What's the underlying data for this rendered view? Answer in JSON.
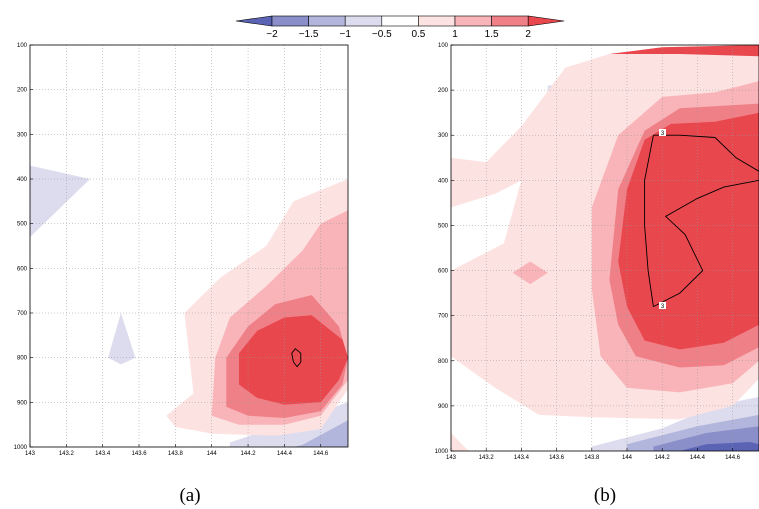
{
  "colorbar": {
    "levels": [
      "-2",
      "-1.5",
      "-1",
      "-0.5",
      "0.5",
      "1",
      "1.5",
      "2"
    ],
    "colors": [
      "#5b64b4",
      "#8a8fc9",
      "#b3b6dc",
      "#dcdcee",
      "#ffffff",
      "#fde2e2",
      "#f8b4b8",
      "#f08088",
      "#e8474d"
    ]
  },
  "chart_data": [
    {
      "type": "contour",
      "caption": "(a)",
      "x_ticks": [
        "143",
        "143.2",
        "143.4",
        "143.6",
        "143.8",
        "144",
        "144.2",
        "144.4",
        "144.6"
      ],
      "y_ticks": [
        "100",
        "200",
        "300",
        "400",
        "500",
        "600",
        "700",
        "800",
        "900",
        "1000"
      ],
      "xlim": [
        143,
        144.75
      ],
      "ylim": [
        1000,
        100
      ],
      "grid": true,
      "contour_labels": [],
      "regions": [
        {
          "level": -0.5,
          "points": [
            [
              143,
              370
            ],
            [
              143.33,
              400
            ],
            [
              143,
              530
            ]
          ]
        },
        {
          "level": -0.5,
          "points": [
            [
              143.5,
              700
            ],
            [
              143.58,
              800
            ],
            [
              143.5,
              815
            ],
            [
              143.43,
              800
            ]
          ]
        },
        {
          "level": -0.5,
          "points": [
            [
              144.1,
              990
            ],
            [
              144.75,
              900
            ],
            [
              144.75,
              1000
            ],
            [
              144.1,
              1000
            ]
          ]
        },
        {
          "level": -1,
          "points": [
            [
              144.5,
              995
            ],
            [
              144.75,
              940
            ],
            [
              144.75,
              1000
            ],
            [
              144.45,
              1000
            ]
          ]
        },
        {
          "level": 0.5,
          "points": [
            [
              143.75,
              930
            ],
            [
              143.9,
              880
            ],
            [
              143.85,
              700
            ],
            [
              144.05,
              620
            ],
            [
              144.3,
              550
            ],
            [
              144.45,
              450
            ],
            [
              144.75,
              400
            ],
            [
              144.75,
              870
            ],
            [
              144.6,
              960
            ],
            [
              144.35,
              975
            ],
            [
              144.0,
              970
            ],
            [
              143.8,
              955
            ]
          ]
        },
        {
          "level": 1.0,
          "points": [
            [
              144.0,
              930
            ],
            [
              144.02,
              800
            ],
            [
              144.1,
              710
            ],
            [
              144.3,
              640
            ],
            [
              144.5,
              560
            ],
            [
              144.6,
              500
            ],
            [
              144.75,
              470
            ],
            [
              144.75,
              850
            ],
            [
              144.6,
              930
            ],
            [
              144.4,
              950
            ],
            [
              144.15,
              950
            ]
          ]
        },
        {
          "level": 1.5,
          "points": [
            [
              144.08,
              910
            ],
            [
              144.08,
              800
            ],
            [
              144.2,
              730
            ],
            [
              144.35,
              680
            ],
            [
              144.55,
              660
            ],
            [
              144.7,
              730
            ],
            [
              144.75,
              800
            ],
            [
              144.72,
              860
            ],
            [
              144.6,
              920
            ],
            [
              144.4,
              935
            ],
            [
              144.2,
              930
            ]
          ]
        },
        {
          "level": 2,
          "points": [
            [
              144.15,
              860
            ],
            [
              144.15,
              790
            ],
            [
              144.25,
              740
            ],
            [
              144.4,
              710
            ],
            [
              144.55,
              705
            ],
            [
              144.72,
              760
            ],
            [
              144.75,
              800
            ],
            [
              144.7,
              850
            ],
            [
              144.6,
              900
            ],
            [
              144.4,
              905
            ],
            [
              144.25,
              890
            ]
          ]
        }
      ],
      "contours": [
        {
          "level": 3,
          "points": [
            [
              144.45,
              810
            ],
            [
              144.44,
              790
            ],
            [
              144.46,
              780
            ],
            [
              144.49,
              790
            ],
            [
              144.49,
              810
            ],
            [
              144.47,
              820
            ]
          ]
        }
      ]
    },
    {
      "type": "contour",
      "caption": "(b)",
      "x_ticks": [
        "143",
        "143.2",
        "143.4",
        "143.6",
        "143.8",
        "144",
        "144.2",
        "144.4",
        "144.6"
      ],
      "y_ticks": [
        "100",
        "200",
        "300",
        "400",
        "500",
        "600",
        "700",
        "800",
        "900",
        "1000"
      ],
      "xlim": [
        143,
        144.75
      ],
      "ylim": [
        1000,
        100
      ],
      "grid": true,
      "contour_labels": [
        "3",
        "3"
      ],
      "regions": [
        {
          "level": -0.5,
          "points": [
            [
              143.55,
              190
            ],
            [
              143.85,
              180
            ],
            [
              144.0,
              200
            ],
            [
              143.75,
              225
            ],
            [
              143.55,
              215
            ]
          ]
        },
        {
          "level": -0.5,
          "points": [
            [
              144.35,
              195
            ],
            [
              144.5,
              200
            ],
            [
              144.35,
              210
            ]
          ]
        },
        {
          "level": -0.5,
          "points": [
            [
              143.8,
              990
            ],
            [
              144.2,
              950
            ],
            [
              144.5,
              900
            ],
            [
              144.75,
              880
            ],
            [
              144.75,
              1000
            ],
            [
              143.8,
              1000
            ]
          ]
        },
        {
          "level": -1,
          "points": [
            [
              144.0,
              985
            ],
            [
              144.4,
              945
            ],
            [
              144.75,
              920
            ],
            [
              144.75,
              1000
            ],
            [
              144.0,
              1000
            ]
          ]
        },
        {
          "level": -1.5,
          "points": [
            [
              144.15,
              990
            ],
            [
              144.45,
              960
            ],
            [
              144.75,
              945
            ],
            [
              144.75,
              1000
            ],
            [
              144.15,
              1000
            ]
          ]
        },
        {
          "level": -2,
          "points": [
            [
              144.3,
              1000
            ],
            [
              144.45,
              985
            ],
            [
              144.7,
              980
            ],
            [
              144.75,
              985
            ],
            [
              144.75,
              1000
            ]
          ]
        },
        {
          "level": 0.5,
          "points": [
            [
              143,
              350
            ],
            [
              143.2,
              360
            ],
            [
              143.4,
              280
            ],
            [
              143.65,
              150
            ],
            [
              143.9,
              120
            ],
            [
              144.2,
              105
            ],
            [
              144.75,
              100
            ],
            [
              144.75,
              840
            ],
            [
              144.6,
              900
            ],
            [
              144.3,
              930
            ],
            [
              143.8,
              925
            ],
            [
              143.5,
              920
            ],
            [
              143.25,
              860
            ],
            [
              143,
              790
            ],
            [
              143,
              600
            ],
            [
              143.3,
              540
            ],
            [
              143.4,
              400
            ],
            [
              143.25,
              430
            ],
            [
              143,
              460
            ]
          ]
        },
        {
          "level": 0.5,
          "points": [
            [
              143,
              960
            ],
            [
              143.1,
              1000
            ],
            [
              143,
              1000
            ]
          ]
        },
        {
          "level": 1.0,
          "points": [
            [
              143.35,
              605
            ],
            [
              143.45,
              580
            ],
            [
              143.55,
              605
            ],
            [
              143.45,
              630
            ]
          ]
        },
        {
          "level": 1.0,
          "points": [
            [
              143.8,
              640
            ],
            [
              143.8,
              460
            ],
            [
              143.95,
              300
            ],
            [
              144.2,
              215
            ],
            [
              144.5,
              205
            ],
            [
              144.75,
              180
            ],
            [
              144.75,
              800
            ],
            [
              144.6,
              850
            ],
            [
              144.3,
              870
            ],
            [
              144.0,
              860
            ],
            [
              143.85,
              790
            ]
          ]
        },
        {
          "level": 1.5,
          "points": [
            [
              143.9,
              620
            ],
            [
              143.95,
              420
            ],
            [
              144.1,
              290
            ],
            [
              144.3,
              240
            ],
            [
              144.75,
              230
            ],
            [
              144.75,
              770
            ],
            [
              144.55,
              810
            ],
            [
              144.3,
              815
            ],
            [
              144.05,
              790
            ],
            [
              143.95,
              720
            ]
          ]
        },
        {
          "level": 2,
          "points": [
            [
              143.95,
              580
            ],
            [
              144.0,
              420
            ],
            [
              144.1,
              310
            ],
            [
              144.25,
              275
            ],
            [
              144.5,
              270
            ],
            [
              144.75,
              250
            ],
            [
              144.75,
              720
            ],
            [
              144.55,
              760
            ],
            [
              144.3,
              775
            ],
            [
              144.1,
              755
            ],
            [
              144.0,
              680
            ]
          ]
        },
        {
          "level": 2,
          "points": [
            [
              143.9,
              120
            ],
            [
              144.2,
              105
            ],
            [
              144.75,
              100
            ],
            [
              144.75,
              125
            ],
            [
              144.3,
              120
            ]
          ]
        }
      ],
      "contours": [
        {
          "level": 3,
          "points": [
            [
              144.15,
              300
            ],
            [
              144.3,
              300
            ],
            [
              144.5,
              305
            ],
            [
              144.62,
              350
            ],
            [
              144.75,
              380
            ]
          ]
        },
        {
          "level": 3,
          "points": [
            [
              144.15,
              300
            ],
            [
              144.1,
              400
            ],
            [
              144.1,
              500
            ],
            [
              144.12,
              600
            ],
            [
              144.15,
              680
            ]
          ]
        },
        {
          "level": 3,
          "points": [
            [
              144.15,
              680
            ],
            [
              144.3,
              650
            ],
            [
              144.43,
              600
            ],
            [
              144.33,
              520
            ],
            [
              144.22,
              480
            ],
            [
              144.4,
              440
            ],
            [
              144.55,
              415
            ],
            [
              144.75,
              400
            ]
          ]
        }
      ]
    }
  ]
}
